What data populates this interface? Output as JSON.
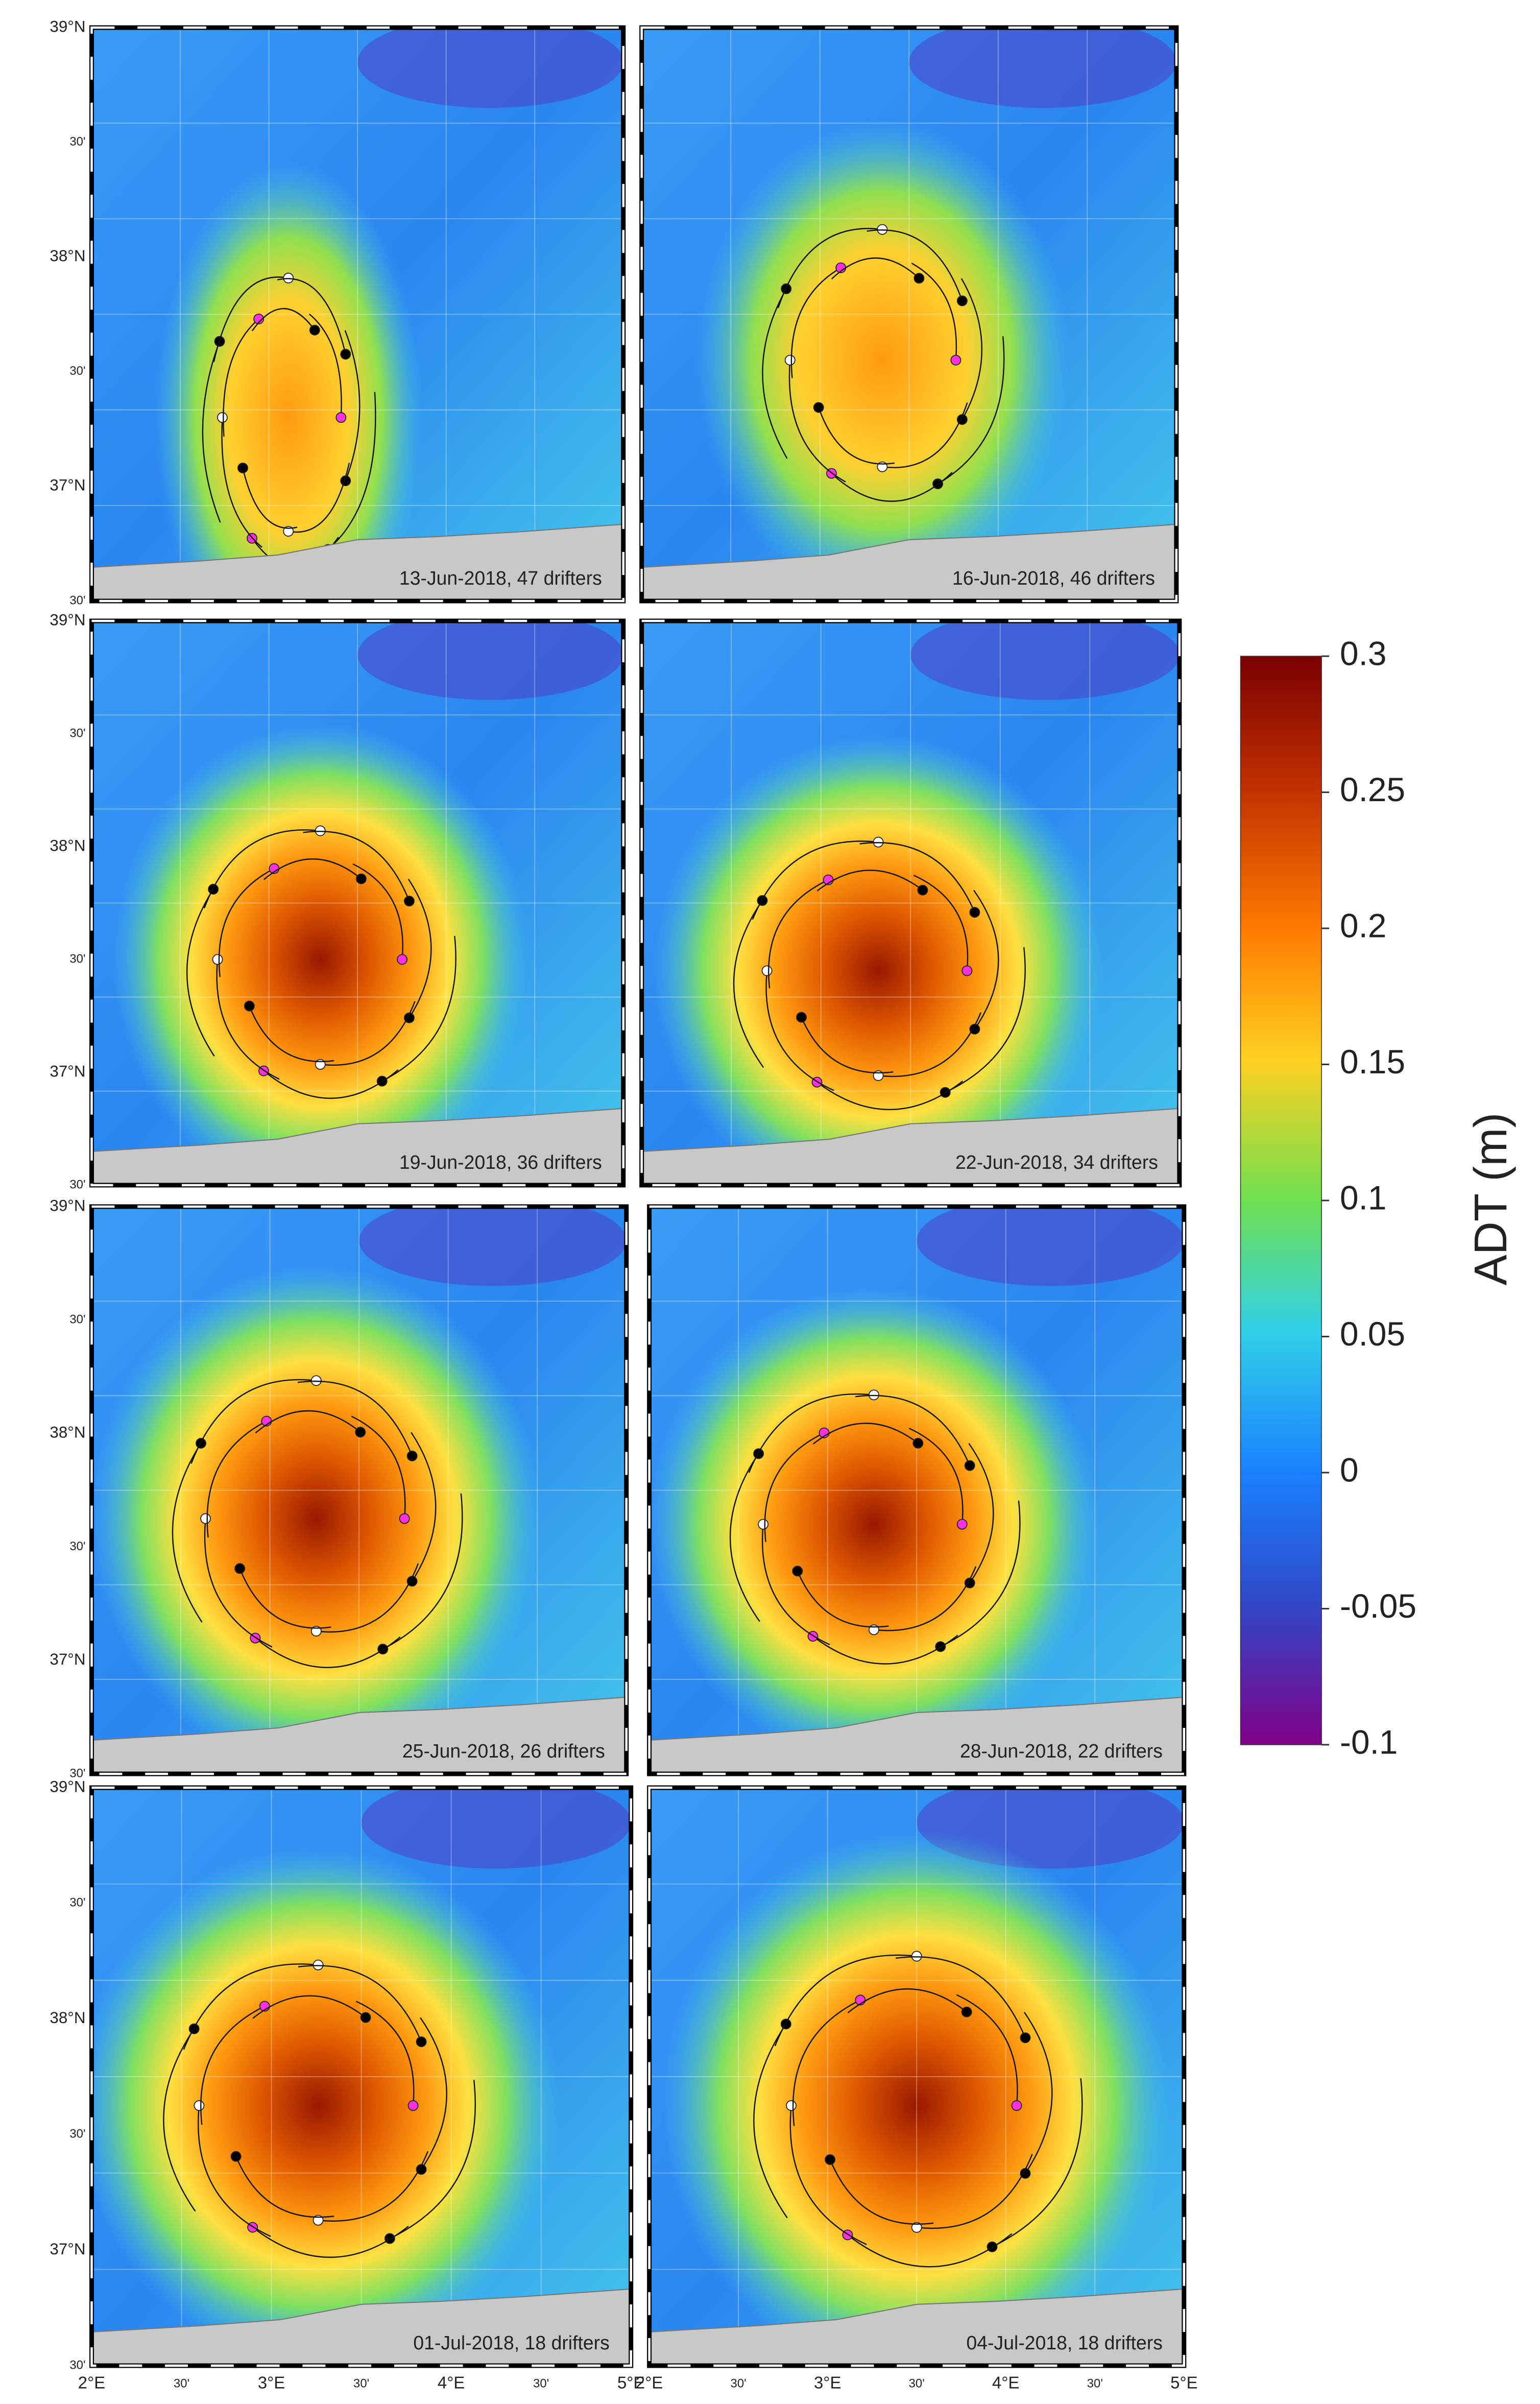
{
  "panels": [
    {
      "label": "13-Jun-2018, 47 drifters"
    },
    {
      "label": "16-Jun-2018, 46 drifters"
    },
    {
      "label": "19-Jun-2018, 36 drifters"
    },
    {
      "label": "22-Jun-2018, 34 drifters"
    },
    {
      "label": "25-Jun-2018, 26 drifters"
    },
    {
      "label": "28-Jun-2018, 22 drifters"
    },
    {
      "label": "01-Jul-2018, 18 drifters"
    },
    {
      "label": "04-Jul-2018, 18 drifters"
    }
  ],
  "lat_labels": [
    "39°N",
    "30'",
    "38°N",
    "30'",
    "37°N",
    "30'"
  ],
  "lon_labels": [
    "2°E",
    "30'",
    "3°E",
    "30'",
    "4°E",
    "30'",
    "5°E"
  ],
  "colorbar": {
    "label": "ADT (m)",
    "lim": [
      -0.1,
      0.3
    ],
    "ticks": [
      0.3,
      0.25,
      0.2,
      0.15,
      0.1,
      0.05,
      0,
      -0.05,
      -0.1
    ]
  }
}
